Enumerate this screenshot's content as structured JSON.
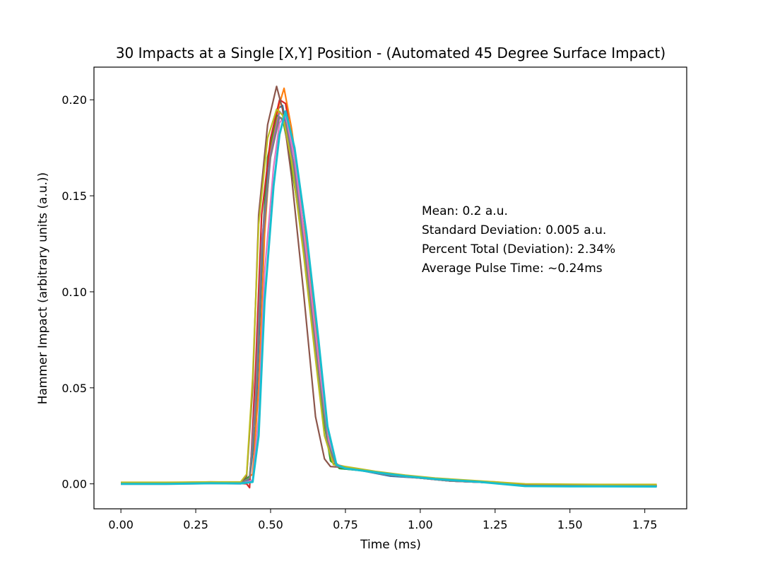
{
  "chart_data": {
    "type": "line",
    "title": "30 Impacts at a Single [X,Y] Position - (Automated 45 Degree Surface Impact)",
    "xlabel": "Time (ms)",
    "ylabel": "Hammer Impact (arbitrary units (a.u.))",
    "xlim": [
      -0.09,
      1.89
    ],
    "ylim": [
      -0.013,
      0.217
    ],
    "xticks": [
      "0.00",
      "0.25",
      "0.50",
      "0.75",
      "1.00",
      "1.25",
      "1.50",
      "1.75"
    ],
    "yticks": [
      "0.00",
      "0.05",
      "0.10",
      "0.15",
      "0.20"
    ],
    "grid": false,
    "annotations": [
      "Mean: 0.2 a.u.",
      "Standard Deviation: 0.005 a.u.",
      "Percent Total (Deviation): 2.34%",
      "Average Pulse Time: ~0.24ms"
    ],
    "series": [
      {
        "color": "#1f77b4",
        "points": [
          [
            0,
            0
          ],
          [
            0.15,
            0
          ],
          [
            0.3,
            0.0005
          ],
          [
            0.4,
            0.0003
          ],
          [
            0.43,
            0.002
          ],
          [
            0.45,
            0.03
          ],
          [
            0.47,
            0.11
          ],
          [
            0.49,
            0.165
          ],
          [
            0.52,
            0.195
          ],
          [
            0.54,
            0.197
          ],
          [
            0.56,
            0.18
          ],
          [
            0.6,
            0.14
          ],
          [
            0.64,
            0.09
          ],
          [
            0.67,
            0.045
          ],
          [
            0.7,
            0.015
          ],
          [
            0.73,
            0.008
          ],
          [
            0.8,
            0.007
          ],
          [
            0.9,
            0.004
          ],
          [
            1.0,
            0.003
          ],
          [
            1.1,
            0.0015
          ],
          [
            1.25,
            0.0005
          ],
          [
            1.35,
            -0.001
          ],
          [
            1.5,
            -0.0012
          ],
          [
            1.6,
            -0.0012
          ],
          [
            1.79,
            -0.0013
          ]
        ]
      },
      {
        "color": "#ff7f0e",
        "points": [
          [
            0,
            0.0005
          ],
          [
            0.15,
            0.0005
          ],
          [
            0.3,
            0.0008
          ],
          [
            0.4,
            0.0006
          ],
          [
            0.44,
            0.005
          ],
          [
            0.46,
            0.05
          ],
          [
            0.48,
            0.13
          ],
          [
            0.5,
            0.175
          ],
          [
            0.53,
            0.198
          ],
          [
            0.545,
            0.206
          ],
          [
            0.57,
            0.185
          ],
          [
            0.61,
            0.14
          ],
          [
            0.65,
            0.085
          ],
          [
            0.68,
            0.04
          ],
          [
            0.71,
            0.012
          ],
          [
            0.74,
            0.008
          ],
          [
            0.8,
            0.007
          ],
          [
            0.9,
            0.005
          ],
          [
            1.0,
            0.0035
          ],
          [
            1.1,
            0.002
          ],
          [
            1.25,
            0.001
          ],
          [
            1.35,
            -0.0005
          ],
          [
            1.5,
            -0.0007
          ],
          [
            1.6,
            -0.0008
          ],
          [
            1.79,
            -0.0008
          ]
        ]
      },
      {
        "color": "#2ca02c",
        "points": [
          [
            0,
            0.0004
          ],
          [
            0.15,
            0.0004
          ],
          [
            0.3,
            0.0005
          ],
          [
            0.4,
            0.0004
          ],
          [
            0.43,
            0.004
          ],
          [
            0.45,
            0.04
          ],
          [
            0.47,
            0.12
          ],
          [
            0.49,
            0.17
          ],
          [
            0.52,
            0.192
          ],
          [
            0.54,
            0.19
          ],
          [
            0.56,
            0.175
          ],
          [
            0.6,
            0.135
          ],
          [
            0.64,
            0.085
          ],
          [
            0.67,
            0.04
          ],
          [
            0.7,
            0.012
          ],
          [
            0.73,
            0.008
          ],
          [
            0.8,
            0.007
          ],
          [
            0.9,
            0.0045
          ],
          [
            1.0,
            0.003
          ],
          [
            1.1,
            0.0015
          ],
          [
            1.25,
            0.0005
          ],
          [
            1.35,
            -0.001
          ],
          [
            1.5,
            -0.001
          ],
          [
            1.6,
            -0.001
          ],
          [
            1.79,
            -0.001
          ]
        ]
      },
      {
        "color": "#d62728",
        "points": [
          [
            0,
            0
          ],
          [
            0.15,
            0
          ],
          [
            0.3,
            0.0003
          ],
          [
            0.4,
            0.0002
          ],
          [
            0.42,
            0
          ],
          [
            0.43,
            -0.002
          ],
          [
            0.45,
            0.06
          ],
          [
            0.47,
            0.14
          ],
          [
            0.5,
            0.18
          ],
          [
            0.53,
            0.2
          ],
          [
            0.55,
            0.198
          ],
          [
            0.58,
            0.17
          ],
          [
            0.62,
            0.12
          ],
          [
            0.66,
            0.065
          ],
          [
            0.69,
            0.025
          ],
          [
            0.72,
            0.01
          ],
          [
            0.8,
            0.007
          ],
          [
            0.9,
            0.0045
          ],
          [
            1.0,
            0.003
          ],
          [
            1.1,
            0.0015
          ],
          [
            1.25,
            0.0005
          ],
          [
            1.35,
            -0.001
          ],
          [
            1.5,
            -0.0012
          ],
          [
            1.6,
            -0.0012
          ],
          [
            1.79,
            -0.0012
          ]
        ]
      },
      {
        "color": "#9467bd",
        "points": [
          [
            0,
            0.0002
          ],
          [
            0.15,
            0.0002
          ],
          [
            0.3,
            0.0004
          ],
          [
            0.4,
            0.0003
          ],
          [
            0.43,
            0.003
          ],
          [
            0.45,
            0.045
          ],
          [
            0.47,
            0.125
          ],
          [
            0.5,
            0.172
          ],
          [
            0.53,
            0.194
          ],
          [
            0.55,
            0.19
          ],
          [
            0.58,
            0.165
          ],
          [
            0.62,
            0.115
          ],
          [
            0.66,
            0.06
          ],
          [
            0.69,
            0.022
          ],
          [
            0.72,
            0.009
          ],
          [
            0.8,
            0.007
          ],
          [
            0.9,
            0.0045
          ],
          [
            1.0,
            0.003
          ],
          [
            1.1,
            0.0015
          ],
          [
            1.25,
            0.0005
          ],
          [
            1.35,
            -0.001
          ],
          [
            1.5,
            -0.0011
          ],
          [
            1.6,
            -0.0011
          ],
          [
            1.79,
            -0.0011
          ]
        ]
      },
      {
        "color": "#8c564b",
        "points": [
          [
            0,
            0.0006
          ],
          [
            0.15,
            0.0006
          ],
          [
            0.3,
            0.001
          ],
          [
            0.4,
            0.0008
          ],
          [
            0.42,
            0.004
          ],
          [
            0.44,
            0.05
          ],
          [
            0.46,
            0.14
          ],
          [
            0.49,
            0.187
          ],
          [
            0.52,
            0.207
          ],
          [
            0.54,
            0.195
          ],
          [
            0.57,
            0.16
          ],
          [
            0.61,
            0.1
          ],
          [
            0.65,
            0.035
          ],
          [
            0.68,
            0.013
          ],
          [
            0.7,
            0.009
          ],
          [
            0.75,
            0.0085
          ],
          [
            0.85,
            0.006
          ],
          [
            0.95,
            0.004
          ],
          [
            1.05,
            0.0025
          ],
          [
            1.2,
            0.001
          ],
          [
            1.35,
            -0.0005
          ],
          [
            1.5,
            -0.0007
          ],
          [
            1.6,
            -0.0007
          ],
          [
            1.79,
            -0.0007
          ]
        ]
      },
      {
        "color": "#e377c2",
        "points": [
          [
            0,
            -0.0002
          ],
          [
            0.15,
            -0.0002
          ],
          [
            0.3,
            0.0002
          ],
          [
            0.4,
            0
          ],
          [
            0.44,
            0.002
          ],
          [
            0.46,
            0.035
          ],
          [
            0.48,
            0.11
          ],
          [
            0.51,
            0.165
          ],
          [
            0.53,
            0.188
          ],
          [
            0.55,
            0.192
          ],
          [
            0.58,
            0.17
          ],
          [
            0.62,
            0.12
          ],
          [
            0.66,
            0.065
          ],
          [
            0.69,
            0.025
          ],
          [
            0.72,
            0.01
          ],
          [
            0.8,
            0.007
          ],
          [
            0.9,
            0.0045
          ],
          [
            1.0,
            0.003
          ],
          [
            1.1,
            0.0015
          ],
          [
            1.25,
            0.0005
          ],
          [
            1.35,
            -0.0012
          ],
          [
            1.5,
            -0.0013
          ],
          [
            1.6,
            -0.0013
          ],
          [
            1.79,
            -0.0013
          ]
        ]
      },
      {
        "color": "#7f7f7f",
        "points": [
          [
            0,
            0.0003
          ],
          [
            0.15,
            0.0003
          ],
          [
            0.3,
            0.0006
          ],
          [
            0.4,
            0.0005
          ],
          [
            0.43,
            0.003
          ],
          [
            0.45,
            0.04
          ],
          [
            0.47,
            0.12
          ],
          [
            0.5,
            0.17
          ],
          [
            0.53,
            0.191
          ],
          [
            0.55,
            0.188
          ],
          [
            0.58,
            0.162
          ],
          [
            0.62,
            0.112
          ],
          [
            0.66,
            0.058
          ],
          [
            0.69,
            0.022
          ],
          [
            0.72,
            0.009
          ],
          [
            0.8,
            0.007
          ],
          [
            0.9,
            0.0045
          ],
          [
            1.0,
            0.003
          ],
          [
            1.1,
            0.0015
          ],
          [
            1.25,
            0.0005
          ],
          [
            1.35,
            -0.001
          ],
          [
            1.5,
            -0.001
          ],
          [
            1.6,
            -0.001
          ],
          [
            1.79,
            -0.001
          ]
        ]
      },
      {
        "color": "#bcbd22",
        "points": [
          [
            0,
            0.0008
          ],
          [
            0.15,
            0.0008
          ],
          [
            0.3,
            0.001
          ],
          [
            0.4,
            0.001
          ],
          [
            0.42,
            0.005
          ],
          [
            0.44,
            0.055
          ],
          [
            0.46,
            0.135
          ],
          [
            0.49,
            0.18
          ],
          [
            0.52,
            0.195
          ],
          [
            0.54,
            0.192
          ],
          [
            0.57,
            0.168
          ],
          [
            0.61,
            0.12
          ],
          [
            0.65,
            0.065
          ],
          [
            0.68,
            0.025
          ],
          [
            0.71,
            0.01
          ],
          [
            0.75,
            0.009
          ],
          [
            0.85,
            0.0065
          ],
          [
            0.95,
            0.0045
          ],
          [
            1.05,
            0.003
          ],
          [
            1.2,
            0.0015
          ],
          [
            1.35,
            0
          ],
          [
            1.5,
            -0.0002
          ],
          [
            1.6,
            -0.0003
          ],
          [
            1.79,
            -0.0003
          ]
        ]
      },
      {
        "color": "#17becf",
        "points": [
          [
            0,
            0
          ],
          [
            0.15,
            0
          ],
          [
            0.3,
            0.0003
          ],
          [
            0.4,
            0.0002
          ],
          [
            0.44,
            0.001
          ],
          [
            0.46,
            0.025
          ],
          [
            0.48,
            0.095
          ],
          [
            0.51,
            0.155
          ],
          [
            0.53,
            0.182
          ],
          [
            0.55,
            0.194
          ],
          [
            0.58,
            0.175
          ],
          [
            0.62,
            0.13
          ],
          [
            0.66,
            0.075
          ],
          [
            0.69,
            0.03
          ],
          [
            0.72,
            0.01
          ],
          [
            0.75,
            0.008
          ],
          [
            0.85,
            0.006
          ],
          [
            0.95,
            0.004
          ],
          [
            1.05,
            0.0025
          ],
          [
            1.2,
            0.001
          ],
          [
            1.35,
            -0.0012
          ],
          [
            1.5,
            -0.0013
          ],
          [
            1.6,
            -0.0013
          ],
          [
            1.79,
            -0.0014
          ]
        ]
      }
    ]
  }
}
